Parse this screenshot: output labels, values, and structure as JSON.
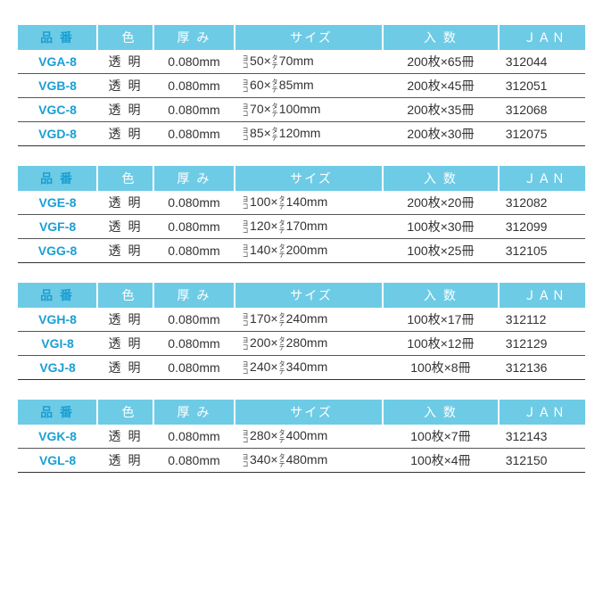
{
  "columns": {
    "code": "品 番",
    "color": "色",
    "thickness": "厚 み",
    "size": "サイズ",
    "quantity": "入 数",
    "jan": "ＪＡＮ"
  },
  "dim_labels": {
    "w_top": "ヨ",
    "w_bot": "コ",
    "h_top": "タ",
    "h_bot": "テ"
  },
  "header_bg": "#6ecbe6",
  "header_fg": "#ffffff",
  "code_color": "#1a9fd4",
  "groups": [
    {
      "rows": [
        {
          "code": "VGA-8",
          "color": "透明",
          "thickness": "0.080mm",
          "w": "50",
          "h": "70",
          "quantity": "200枚×65冊",
          "jan": "312044"
        },
        {
          "code": "VGB-8",
          "color": "透明",
          "thickness": "0.080mm",
          "w": "60",
          "h": "85",
          "quantity": "200枚×45冊",
          "jan": "312051"
        },
        {
          "code": "VGC-8",
          "color": "透明",
          "thickness": "0.080mm",
          "w": "70",
          "h": "100",
          "quantity": "200枚×35冊",
          "jan": "312068"
        },
        {
          "code": "VGD-8",
          "color": "透明",
          "thickness": "0.080mm",
          "w": "85",
          "h": "120",
          "quantity": "200枚×30冊",
          "jan": "312075"
        }
      ]
    },
    {
      "rows": [
        {
          "code": "VGE-8",
          "color": "透明",
          "thickness": "0.080mm",
          "w": "100",
          "h": "140",
          "quantity": "200枚×20冊",
          "jan": "312082"
        },
        {
          "code": "VGF-8",
          "color": "透明",
          "thickness": "0.080mm",
          "w": "120",
          "h": "170",
          "quantity": "100枚×30冊",
          "jan": "312099"
        },
        {
          "code": "VGG-8",
          "color": "透明",
          "thickness": "0.080mm",
          "w": "140",
          "h": "200",
          "quantity": "100枚×25冊",
          "jan": "312105"
        }
      ]
    },
    {
      "rows": [
        {
          "code": "VGH-8",
          "color": "透明",
          "thickness": "0.080mm",
          "w": "170",
          "h": "240",
          "quantity": "100枚×17冊",
          "jan": "312112"
        },
        {
          "code": "VGI-8",
          "color": "透明",
          "thickness": "0.080mm",
          "w": "200",
          "h": "280",
          "quantity": "100枚×12冊",
          "jan": "312129"
        },
        {
          "code": "VGJ-8",
          "color": "透明",
          "thickness": "0.080mm",
          "w": "240",
          "h": "340",
          "quantity": "100枚×8冊",
          "jan": "312136"
        }
      ]
    },
    {
      "rows": [
        {
          "code": "VGK-8",
          "color": "透明",
          "thickness": "0.080mm",
          "w": "280",
          "h": "400",
          "quantity": "100枚×7冊",
          "jan": "312143"
        },
        {
          "code": "VGL-8",
          "color": "透明",
          "thickness": "0.080mm",
          "w": "340",
          "h": "480",
          "quantity": "100枚×4冊",
          "jan": "312150"
        }
      ]
    }
  ]
}
